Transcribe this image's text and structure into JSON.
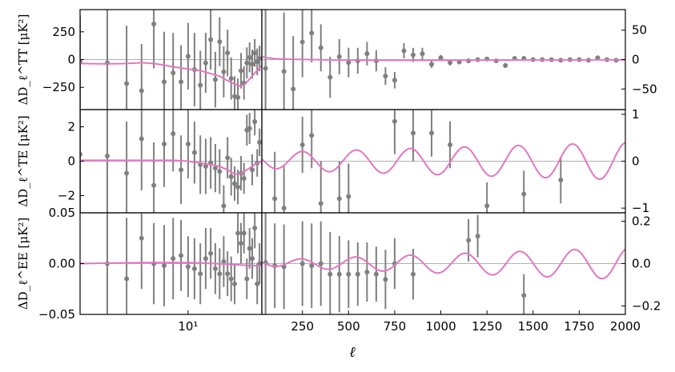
{
  "figure": {
    "xlabel": "ℓ",
    "colors": {
      "points": "#7f7f7f",
      "model": "#e377c2",
      "zero_line": "#b0b0b0",
      "axes": "#000000"
    }
  },
  "chart_data": [
    {
      "type": "scatter",
      "panel": "TT",
      "ylabel": "ΔD_ℓ^TT [μK²]",
      "left": {
        "xscale": "log",
        "xlim": [
          2,
          30
        ],
        "ylim": [
          -450,
          450
        ],
        "yticks": [
          -250,
          0,
          250
        ],
        "ytick_labels": [
          "−250",
          "0",
          "250"
        ],
        "xticks": [],
        "xtick_labels": []
      },
      "right": {
        "xscale": "linear",
        "xlim": [
          30,
          2000
        ],
        "ylim": [
          -85,
          85
        ],
        "yticks": [
          -50,
          0,
          50
        ],
        "ytick_labels": [
          "−50",
          "0",
          "50"
        ],
        "xticks": [],
        "xtick_labels": []
      },
      "points_low": [
        {
          "x": 2,
          "y": -20,
          "e": 420
        },
        {
          "x": 3,
          "y": -30,
          "e": 600
        },
        {
          "x": 4,
          "y": -215,
          "e": 520
        },
        {
          "x": 5,
          "y": -280,
          "e": 420
        },
        {
          "x": 6,
          "y": 320,
          "e": 400
        },
        {
          "x": 7,
          "y": -200,
          "e": 450
        },
        {
          "x": 8,
          "y": -120,
          "e": 360
        },
        {
          "x": 9,
          "y": -200,
          "e": 330
        },
        {
          "x": 10,
          "y": 30,
          "e": 300
        },
        {
          "x": 11,
          "y": -90,
          "e": 330
        },
        {
          "x": 12,
          "y": -230,
          "e": 310
        },
        {
          "x": 13,
          "y": -30,
          "e": 270
        },
        {
          "x": 14,
          "y": 180,
          "e": 270
        },
        {
          "x": 15,
          "y": -180,
          "e": 250
        },
        {
          "x": 16,
          "y": 160,
          "e": 220
        },
        {
          "x": 17,
          "y": -110,
          "e": 230
        },
        {
          "x": 18,
          "y": 60,
          "e": 210
        },
        {
          "x": 19,
          "y": -170,
          "e": 190
        },
        {
          "x": 20,
          "y": -330,
          "e": 180
        },
        {
          "x": 21,
          "y": -340,
          "e": 170
        },
        {
          "x": 22,
          "y": -100,
          "e": 160
        },
        {
          "x": 23,
          "y": -210,
          "e": 150
        },
        {
          "x": 24,
          "y": -30,
          "e": 140
        },
        {
          "x": 25,
          "y": 20,
          "e": 135
        },
        {
          "x": 26,
          "y": -40,
          "e": 130
        },
        {
          "x": 27,
          "y": 60,
          "e": 125
        },
        {
          "x": 28,
          "y": -20,
          "e": 120
        },
        {
          "x": 29,
          "y": 10,
          "e": 115
        }
      ],
      "points_high": [
        {
          "x": 50,
          "y": -15,
          "e": 120
        },
        {
          "x": 150,
          "y": -20,
          "e": 100
        },
        {
          "x": 200,
          "y": -50,
          "e": 90
        },
        {
          "x": 250,
          "y": 30,
          "e": 60
        },
        {
          "x": 300,
          "y": 45,
          "e": 50
        },
        {
          "x": 350,
          "y": 20,
          "e": 40
        },
        {
          "x": 400,
          "y": -30,
          "e": 35
        },
        {
          "x": 450,
          "y": 5,
          "e": 30
        },
        {
          "x": 500,
          "y": -5,
          "e": 25
        },
        {
          "x": 550,
          "y": -2,
          "e": 22
        },
        {
          "x": 600,
          "y": 10,
          "e": 20
        },
        {
          "x": 650,
          "y": -2,
          "e": 18
        },
        {
          "x": 700,
          "y": -28,
          "e": 15
        },
        {
          "x": 750,
          "y": -35,
          "e": 14
        },
        {
          "x": 800,
          "y": 15,
          "e": 13
        },
        {
          "x": 850,
          "y": 8,
          "e": 12
        },
        {
          "x": 900,
          "y": 10,
          "e": 10
        },
        {
          "x": 950,
          "y": -8,
          "e": 6
        },
        {
          "x": 1000,
          "y": 3,
          "e": 5
        },
        {
          "x": 1050,
          "y": -5,
          "e": 5
        },
        {
          "x": 1100,
          "y": -4,
          "e": 4
        },
        {
          "x": 1150,
          "y": -2,
          "e": 4
        },
        {
          "x": 1200,
          "y": 0,
          "e": 3
        },
        {
          "x": 1250,
          "y": 1,
          "e": 3
        },
        {
          "x": 1300,
          "y": -2,
          "e": 3
        },
        {
          "x": 1350,
          "y": -10,
          "e": 4
        },
        {
          "x": 1400,
          "y": 2,
          "e": 3
        },
        {
          "x": 1450,
          "y": 2,
          "e": 3
        },
        {
          "x": 1500,
          "y": 0,
          "e": 3
        },
        {
          "x": 1550,
          "y": 0,
          "e": 3
        },
        {
          "x": 1600,
          "y": 0,
          "e": 3
        },
        {
          "x": 1650,
          "y": -1,
          "e": 3
        },
        {
          "x": 1700,
          "y": 0,
          "e": 3
        },
        {
          "x": 1750,
          "y": 0,
          "e": 3
        },
        {
          "x": 1800,
          "y": -1,
          "e": 3
        },
        {
          "x": 1850,
          "y": 3,
          "e": 3
        },
        {
          "x": 1900,
          "y": 0,
          "e": 3
        },
        {
          "x": 1950,
          "y": -1,
          "e": 3
        }
      ],
      "model_low": [
        [
          2,
          -35
        ],
        [
          3,
          -38
        ],
        [
          4,
          -35
        ],
        [
          5,
          -28
        ],
        [
          6,
          -35
        ],
        [
          7,
          -50
        ],
        [
          8,
          -65
        ],
        [
          10,
          -85
        ],
        [
          12,
          -100
        ],
        [
          14,
          -125
        ],
        [
          16,
          -150
        ],
        [
          18,
          -190
        ],
        [
          20,
          -220
        ],
        [
          22,
          -240
        ],
        [
          23,
          -230
        ],
        [
          25,
          -175
        ],
        [
          27,
          -120
        ],
        [
          30,
          -55
        ]
      ],
      "model_high": [
        [
          30,
          5
        ],
        [
          60,
          3
        ],
        [
          100,
          1.5
        ],
        [
          200,
          0.5
        ],
        [
          400,
          -0.5
        ],
        [
          600,
          -1
        ],
        [
          800,
          -1
        ],
        [
          1000,
          -1
        ],
        [
          1200,
          -0.7
        ],
        [
          1500,
          -0.5
        ],
        [
          1800,
          -0.5
        ],
        [
          2000,
          -0.3
        ]
      ]
    },
    {
      "type": "scatter",
      "panel": "TE",
      "ylabel": "ΔD_ℓ^TE [μK²]",
      "left": {
        "xscale": "log",
        "xlim": [
          2,
          30
        ],
        "ylim": [
          -3,
          3
        ],
        "yticks": [
          -2,
          0,
          2
        ],
        "ytick_labels": [
          "−2",
          "0",
          "2"
        ],
        "xticks": [],
        "xtick_labels": []
      },
      "right": {
        "xscale": "linear",
        "xlim": [
          30,
          2000
        ],
        "ylim": [
          -1.1,
          1.1
        ],
        "yticks": [
          -1,
          0,
          1
        ],
        "ytick_labels": [
          "−1",
          "0",
          "1"
        ],
        "xticks": [],
        "xtick_labels": []
      },
      "points_low": [
        {
          "x": 2,
          "y": 0.4,
          "e": 4
        },
        {
          "x": 3,
          "y": 0.3,
          "e": 4
        },
        {
          "x": 4,
          "y": -0.7,
          "e": 3
        },
        {
          "x": 5,
          "y": 1.3,
          "e": 3
        },
        {
          "x": 6,
          "y": -1.4,
          "e": 2.5
        },
        {
          "x": 7,
          "y": 1.0,
          "e": 2.5
        },
        {
          "x": 8,
          "y": 1.6,
          "e": 2.2
        },
        {
          "x": 9,
          "y": -0.5,
          "e": 2
        },
        {
          "x": 10,
          "y": 1.0,
          "e": 2
        },
        {
          "x": 11,
          "y": 0.5,
          "e": 1.8
        },
        {
          "x": 12,
          "y": -0.2,
          "e": 1.7
        },
        {
          "x": 13,
          "y": -0.3,
          "e": 1.6
        },
        {
          "x": 14,
          "y": -0.1,
          "e": 1.5
        },
        {
          "x": 15,
          "y": -0.4,
          "e": 1.4
        },
        {
          "x": 16,
          "y": -0.6,
          "e": 1.3
        },
        {
          "x": 17,
          "y": -2.6,
          "e": 1.2
        },
        {
          "x": 18,
          "y": 0.2,
          "e": 1.2
        },
        {
          "x": 19,
          "y": -0.9,
          "e": 1.1
        },
        {
          "x": 20,
          "y": -1.3,
          "e": 1.0
        },
        {
          "x": 21,
          "y": -1.5,
          "e": 1.0
        },
        {
          "x": 22,
          "y": -0.7,
          "e": 1.0
        },
        {
          "x": 23,
          "y": -1.0,
          "e": 0.9
        },
        {
          "x": 24,
          "y": 1.8,
          "e": 0.9
        },
        {
          "x": 25,
          "y": 1.9,
          "e": 0.9
        },
        {
          "x": 26,
          "y": -0.5,
          "e": 0.9
        },
        {
          "x": 27,
          "y": 2.3,
          "e": 0.8
        },
        {
          "x": 28,
          "y": -0.1,
          "e": 0.8
        },
        {
          "x": 29,
          "y": 1.1,
          "e": 0.8
        }
      ],
      "points_high": [
        {
          "x": 100,
          "y": -0.8,
          "e": 1.0
        },
        {
          "x": 150,
          "y": -1.0,
          "e": 0.9
        },
        {
          "x": 250,
          "y": 0.35,
          "e": 0.6
        },
        {
          "x": 300,
          "y": 0.55,
          "e": 0.7
        },
        {
          "x": 350,
          "y": -0.9,
          "e": 0.9
        },
        {
          "x": 450,
          "y": -0.8,
          "e": 0.8
        },
        {
          "x": 500,
          "y": -0.75,
          "e": 0.7
        },
        {
          "x": 750,
          "y": 0.85,
          "e": 0.7
        },
        {
          "x": 850,
          "y": 0.6,
          "e": 0.6
        },
        {
          "x": 950,
          "y": 0.6,
          "e": 0.5
        },
        {
          "x": 1050,
          "y": 0.35,
          "e": 0.5
        },
        {
          "x": 1250,
          "y": -0.95,
          "e": 0.5
        },
        {
          "x": 1450,
          "y": -0.7,
          "e": 0.5
        },
        {
          "x": 1650,
          "y": -0.4,
          "e": 0.5
        }
      ],
      "model_low": [
        [
          2,
          0.05
        ],
        [
          4,
          0.05
        ],
        [
          6,
          0.05
        ],
        [
          8,
          0.05
        ],
        [
          10,
          0.0
        ],
        [
          12,
          -0.1
        ],
        [
          14,
          -0.2
        ],
        [
          16,
          -0.3
        ],
        [
          18,
          -0.5
        ],
        [
          20,
          -0.75
        ],
        [
          22,
          -0.7
        ],
        [
          25,
          -0.4
        ],
        [
          28,
          -0.1
        ],
        [
          30,
          0
        ]
      ],
      "model_high": []
    },
    {
      "type": "scatter",
      "panel": "EE",
      "ylabel": "ΔD_ℓ^EE [μK²]",
      "left": {
        "xscale": "log",
        "xlim": [
          2,
          30
        ],
        "ylim": [
          -0.05,
          0.05
        ],
        "yticks": [
          -0.05,
          0.0,
          0.05
        ],
        "ytick_labels": [
          "−0.05",
          "0.00",
          "0.05"
        ],
        "xticks": [
          10
        ],
        "xtick_labels": [
          "10¹"
        ]
      },
      "right": {
        "xscale": "linear",
        "xlim": [
          30,
          2000
        ],
        "ylim": [
          -0.24,
          0.24
        ],
        "yticks": [
          -0.2,
          0.0,
          0.2
        ],
        "ytick_labels": [
          "−0.2",
          "0.0",
          "0.2"
        ],
        "xticks": [
          250,
          500,
          750,
          1000,
          1250,
          1500,
          1750,
          2000
        ],
        "xtick_labels": [
          "250",
          "500",
          "750",
          "1000",
          "1250",
          "1500",
          "1750",
          "2000"
        ]
      },
      "points_low": [
        {
          "x": 3,
          "y": 0.0,
          "e": 0.06
        },
        {
          "x": 4,
          "y": -0.015,
          "e": 0.06
        },
        {
          "x": 5,
          "y": 0.025,
          "e": 0.05
        },
        {
          "x": 6,
          "y": 0.0,
          "e": 0.04
        },
        {
          "x": 7,
          "y": -0.002,
          "e": 0.04
        },
        {
          "x": 8,
          "y": 0.005,
          "e": 0.04
        },
        {
          "x": 9,
          "y": 0.008,
          "e": 0.035
        },
        {
          "x": 10,
          "y": -0.003,
          "e": 0.03
        },
        {
          "x": 11,
          "y": -0.005,
          "e": 0.03
        },
        {
          "x": 12,
          "y": -0.01,
          "e": 0.03
        },
        {
          "x": 13,
          "y": 0.005,
          "e": 0.03
        },
        {
          "x": 14,
          "y": 0.01,
          "e": 0.025
        },
        {
          "x": 15,
          "y": -0.005,
          "e": 0.025
        },
        {
          "x": 16,
          "y": -0.01,
          "e": 0.025
        },
        {
          "x": 17,
          "y": 0.002,
          "e": 0.025
        },
        {
          "x": 18,
          "y": -0.01,
          "e": 0.022
        },
        {
          "x": 19,
          "y": -0.015,
          "e": 0.022
        },
        {
          "x": 20,
          "y": -0.02,
          "e": 0.02
        },
        {
          "x": 21,
          "y": 0.03,
          "e": 0.02
        },
        {
          "x": 22,
          "y": 0.02,
          "e": 0.02
        },
        {
          "x": 23,
          "y": 0.03,
          "e": 0.02
        },
        {
          "x": 24,
          "y": -0.015,
          "e": 0.02
        },
        {
          "x": 25,
          "y": 0.015,
          "e": 0.02
        },
        {
          "x": 26,
          "y": 0.005,
          "e": 0.02
        },
        {
          "x": 27,
          "y": 0.035,
          "e": 0.02
        },
        {
          "x": 28,
          "y": -0.02,
          "e": 0.02
        },
        {
          "x": 29,
          "y": 0.0,
          "e": 0.02
        }
      ],
      "points_high": [
        {
          "x": 50,
          "y": 0.005,
          "e": 0.25
        },
        {
          "x": 100,
          "y": -0.01,
          "e": 0.2
        },
        {
          "x": 150,
          "y": -0.015,
          "e": 0.2
        },
        {
          "x": 250,
          "y": 0.0,
          "e": 0.2
        },
        {
          "x": 300,
          "y": -0.01,
          "e": 0.2
        },
        {
          "x": 350,
          "y": 0.0,
          "e": 0.2
        },
        {
          "x": 400,
          "y": -0.05,
          "e": 0.2
        },
        {
          "x": 450,
          "y": -0.05,
          "e": 0.18
        },
        {
          "x": 500,
          "y": -0.05,
          "e": 0.16
        },
        {
          "x": 550,
          "y": -0.05,
          "e": 0.15
        },
        {
          "x": 600,
          "y": -0.04,
          "e": 0.14
        },
        {
          "x": 650,
          "y": -0.05,
          "e": 0.13
        },
        {
          "x": 700,
          "y": -0.075,
          "e": 0.14
        },
        {
          "x": 750,
          "y": 0.0,
          "e": 0.12
        },
        {
          "x": 850,
          "y": -0.05,
          "e": 0.12
        },
        {
          "x": 1150,
          "y": 0.11,
          "e": 0.1
        },
        {
          "x": 1200,
          "y": 0.13,
          "e": 0.1
        },
        {
          "x": 1450,
          "y": -0.15,
          "e": 0.1
        }
      ],
      "model_low": [
        [
          2,
          0.0
        ],
        [
          5,
          0.001
        ],
        [
          10,
          0.001
        ],
        [
          15,
          0.0
        ],
        [
          20,
          -0.001
        ],
        [
          25,
          -0.002
        ],
        [
          30,
          -0.002
        ]
      ],
      "model_high": []
    }
  ]
}
